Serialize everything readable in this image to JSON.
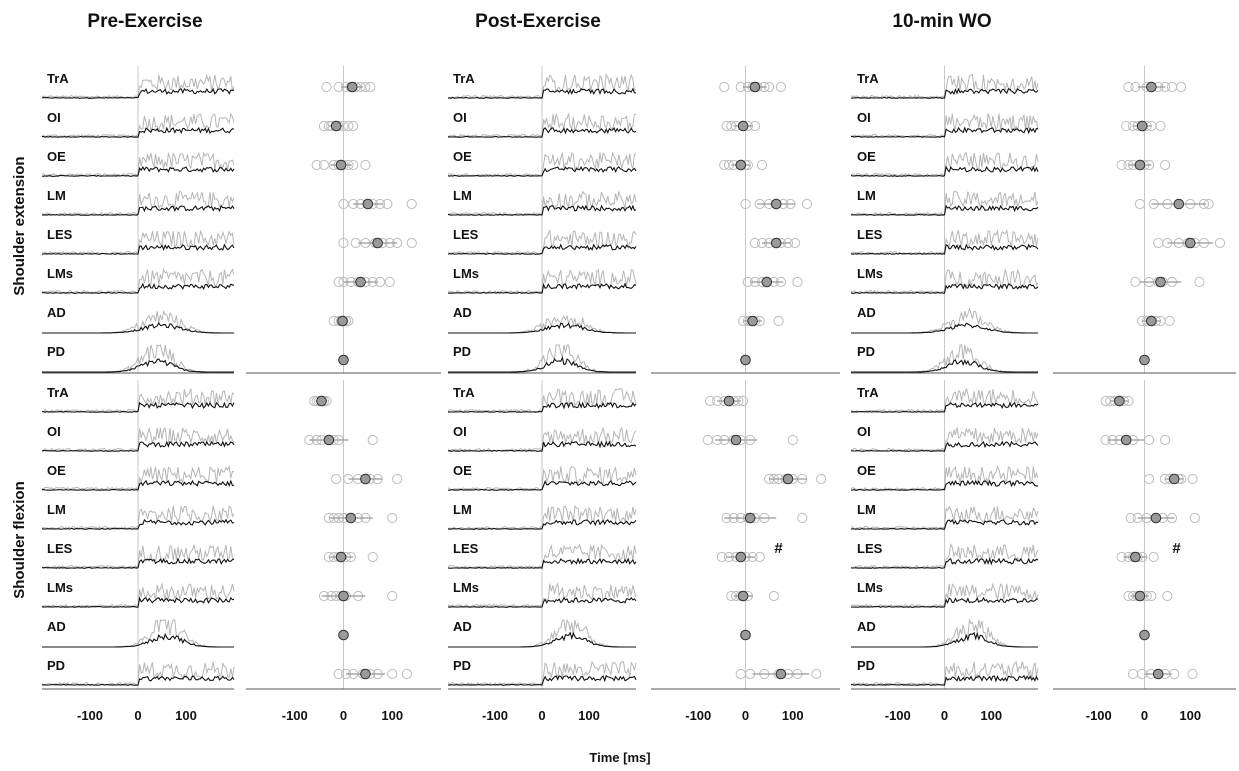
{
  "chart_data": {
    "type": "scatter",
    "xlabel": "Time [ms]",
    "conditions": [
      "Pre-Exercise",
      "Post-Exercise",
      "10-min WO"
    ],
    "groups": [
      "Shoulder extension",
      "Shoulder flexion"
    ],
    "muscles": [
      "TrA",
      "OI",
      "OE",
      "LM",
      "LES",
      "LMs",
      "AD",
      "PD"
    ],
    "emg_xticks": [
      "-100",
      "0",
      "100"
    ],
    "onset_xticks": [
      "-100",
      "0",
      "100"
    ],
    "emg_xlim": [
      -200,
      200
    ],
    "onset_xlim": [
      -200,
      200
    ],
    "significance_marker": "#",
    "onsets": [
      {
        "condition": "Pre-Exercise",
        "group": "Shoulder extension",
        "series": [
          {
            "muscle": "TrA",
            "mean": 18,
            "sd": 22,
            "individual": [
              -35,
              -10,
              5,
              15,
              25,
              35,
              45,
              55
            ]
          },
          {
            "muscle": "OI",
            "mean": -15,
            "sd": 15,
            "individual": [
              -40,
              -30,
              -25,
              -15,
              -10,
              0,
              10,
              20
            ]
          },
          {
            "muscle": "OE",
            "mean": -5,
            "sd": 22,
            "individual": [
              -55,
              -40,
              -20,
              -10,
              0,
              10,
              20,
              45
            ]
          },
          {
            "muscle": "LM",
            "mean": 50,
            "sd": 30,
            "individual": [
              0,
              20,
              35,
              50,
              60,
              75,
              90,
              140
            ]
          },
          {
            "muscle": "LES",
            "mean": 70,
            "sd": 40,
            "individual": [
              0,
              25,
              45,
              65,
              80,
              95,
              110,
              140
            ]
          },
          {
            "muscle": "LMs",
            "mean": 35,
            "sd": 35,
            "individual": [
              -10,
              0,
              15,
              30,
              45,
              60,
              75,
              95
            ]
          },
          {
            "muscle": "AD",
            "mean": -2,
            "sd": 10,
            "individual": [
              -20,
              -10,
              -5,
              0,
              5,
              10
            ]
          },
          {
            "muscle": "PD",
            "mean": 0,
            "sd": 0,
            "individual": [
              0
            ]
          }
        ]
      },
      {
        "condition": "Pre-Exercise",
        "group": "Shoulder flexion",
        "series": [
          {
            "muscle": "TrA",
            "mean": -45,
            "sd": 12,
            "individual": [
              -60,
              -55,
              -50,
              -45,
              -40,
              -35
            ]
          },
          {
            "muscle": "OI",
            "mean": -30,
            "sd": 40,
            "individual": [
              -70,
              -55,
              -45,
              -30,
              -20,
              -10,
              60
            ]
          },
          {
            "muscle": "OE",
            "mean": 45,
            "sd": 35,
            "individual": [
              -15,
              10,
              30,
              45,
              55,
              70,
              110
            ]
          },
          {
            "muscle": "LM",
            "mean": 15,
            "sd": 45,
            "individual": [
              -30,
              -20,
              -10,
              0,
              15,
              30,
              45,
              100
            ]
          },
          {
            "muscle": "LES",
            "mean": -5,
            "sd": 25,
            "individual": [
              -30,
              -20,
              -10,
              -5,
              5,
              15,
              60
            ]
          },
          {
            "muscle": "LMs",
            "mean": 0,
            "sd": 45,
            "individual": [
              -40,
              -25,
              -15,
              -5,
              5,
              30,
              100
            ]
          },
          {
            "muscle": "AD",
            "mean": 0,
            "sd": 0,
            "individual": [
              0
            ]
          },
          {
            "muscle": "PD",
            "mean": 45,
            "sd": 40,
            "individual": [
              -10,
              5,
              20,
              40,
              55,
              70,
              100,
              130
            ]
          }
        ]
      },
      {
        "condition": "Post-Exercise",
        "group": "Shoulder extension",
        "series": [
          {
            "muscle": "TrA",
            "mean": 20,
            "sd": 25,
            "individual": [
              -45,
              -10,
              5,
              15,
              25,
              40,
              50,
              75
            ]
          },
          {
            "muscle": "OI",
            "mean": -5,
            "sd": 20,
            "individual": [
              -40,
              -30,
              -20,
              -5,
              5,
              20
            ]
          },
          {
            "muscle": "OE",
            "mean": -10,
            "sd": 20,
            "individual": [
              -45,
              -35,
              -25,
              -10,
              0,
              5,
              35
            ]
          },
          {
            "muscle": "LM",
            "mean": 65,
            "sd": 40,
            "individual": [
              0,
              30,
              50,
              65,
              80,
              95,
              130
            ]
          },
          {
            "muscle": "LES",
            "mean": 65,
            "sd": 30,
            "individual": [
              20,
              35,
              50,
              65,
              75,
              90,
              105
            ]
          },
          {
            "muscle": "LMs",
            "mean": 45,
            "sd": 35,
            "individual": [
              5,
              20,
              35,
              45,
              60,
              75,
              110
            ]
          },
          {
            "muscle": "AD",
            "mean": 15,
            "sd": 20,
            "individual": [
              -5,
              5,
              10,
              20,
              30,
              70
            ]
          },
          {
            "muscle": "PD",
            "mean": 0,
            "sd": 0,
            "individual": [
              0
            ]
          }
        ]
      },
      {
        "condition": "Post-Exercise",
        "group": "Shoulder flexion",
        "series": [
          {
            "muscle": "TrA",
            "mean": -35,
            "sd": 25,
            "individual": [
              -75,
              -60,
              -45,
              -35,
              -25,
              -15,
              -5
            ]
          },
          {
            "muscle": "OI",
            "mean": -20,
            "sd": 45,
            "individual": [
              -80,
              -60,
              -45,
              -25,
              -10,
              10,
              100
            ]
          },
          {
            "muscle": "OE",
            "mean": 90,
            "sd": 40,
            "individual": [
              50,
              60,
              70,
              85,
              100,
              120,
              160
            ]
          },
          {
            "muscle": "LM",
            "mean": 10,
            "sd": 55,
            "individual": [
              -40,
              -25,
              -10,
              5,
              20,
              40,
              120
            ]
          },
          {
            "muscle": "LES",
            "mean": -10,
            "sd": 30,
            "individual": [
              -50,
              -35,
              -20,
              -10,
              0,
              15,
              30
            ]
          },
          {
            "muscle": "LMs",
            "mean": -5,
            "sd": 20,
            "individual": [
              -30,
              -20,
              -10,
              -5,
              5,
              60
            ]
          },
          {
            "muscle": "AD",
            "mean": 0,
            "sd": 0,
            "individual": [
              0
            ]
          },
          {
            "muscle": "PD",
            "mean": 75,
            "sd": 60,
            "individual": [
              -10,
              10,
              40,
              70,
              90,
              110,
              150
            ]
          }
        ],
        "marks": [
          {
            "muscle": "LES",
            "x": 70,
            "text": "#"
          }
        ]
      },
      {
        "condition": "10-min WO",
        "group": "Shoulder extension",
        "series": [
          {
            "muscle": "TrA",
            "mean": 15,
            "sd": 30,
            "individual": [
              -35,
              -20,
              5,
              15,
              30,
              45,
              60,
              80
            ]
          },
          {
            "muscle": "OI",
            "mean": -5,
            "sd": 20,
            "individual": [
              -40,
              -25,
              -15,
              -5,
              5,
              15,
              35
            ]
          },
          {
            "muscle": "OE",
            "mean": -10,
            "sd": 25,
            "individual": [
              -50,
              -35,
              -25,
              -10,
              0,
              10,
              45
            ]
          },
          {
            "muscle": "LM",
            "mean": 75,
            "sd": 60,
            "individual": [
              -10,
              20,
              50,
              75,
              100,
              130,
              140
            ]
          },
          {
            "muscle": "LES",
            "mean": 100,
            "sd": 50,
            "individual": [
              30,
              50,
              75,
              95,
              110,
              130,
              165
            ]
          },
          {
            "muscle": "LMs",
            "mean": 35,
            "sd": 45,
            "individual": [
              -20,
              10,
              30,
              40,
              60,
              120
            ]
          },
          {
            "muscle": "AD",
            "mean": 15,
            "sd": 20,
            "individual": [
              -5,
              5,
              15,
              25,
              35,
              55
            ]
          },
          {
            "muscle": "PD",
            "mean": 0,
            "sd": 0,
            "individual": [
              0
            ]
          }
        ]
      },
      {
        "condition": "10-min WO",
        "group": "Shoulder flexion",
        "series": [
          {
            "muscle": "TrA",
            "mean": -55,
            "sd": 20,
            "individual": [
              -85,
              -75,
              -65,
              -55,
              -45,
              -35
            ]
          },
          {
            "muscle": "OI",
            "mean": -40,
            "sd": 40,
            "individual": [
              -85,
              -70,
              -55,
              -40,
              -25,
              10,
              45
            ]
          },
          {
            "muscle": "OE",
            "mean": 65,
            "sd": 20,
            "individual": [
              10,
              45,
              55,
              65,
              75,
              80,
              105
            ]
          },
          {
            "muscle": "LM",
            "mean": 25,
            "sd": 40,
            "individual": [
              -30,
              -15,
              5,
              25,
              40,
              60,
              110
            ]
          },
          {
            "muscle": "LES",
            "mean": -20,
            "sd": 25,
            "individual": [
              -50,
              -35,
              -25,
              -15,
              -5,
              20
            ]
          },
          {
            "muscle": "LMs",
            "mean": -10,
            "sd": 20,
            "individual": [
              -35,
              -25,
              -15,
              -5,
              5,
              15,
              50
            ]
          },
          {
            "muscle": "AD",
            "mean": 0,
            "sd": 0,
            "individual": [
              0
            ]
          },
          {
            "muscle": "PD",
            "mean": 30,
            "sd": 30,
            "individual": [
              -25,
              -5,
              15,
              30,
              45,
              65,
              105
            ]
          }
        ],
        "marks": [
          {
            "muscle": "LES",
            "x": 70,
            "text": "#"
          }
        ]
      }
    ]
  }
}
